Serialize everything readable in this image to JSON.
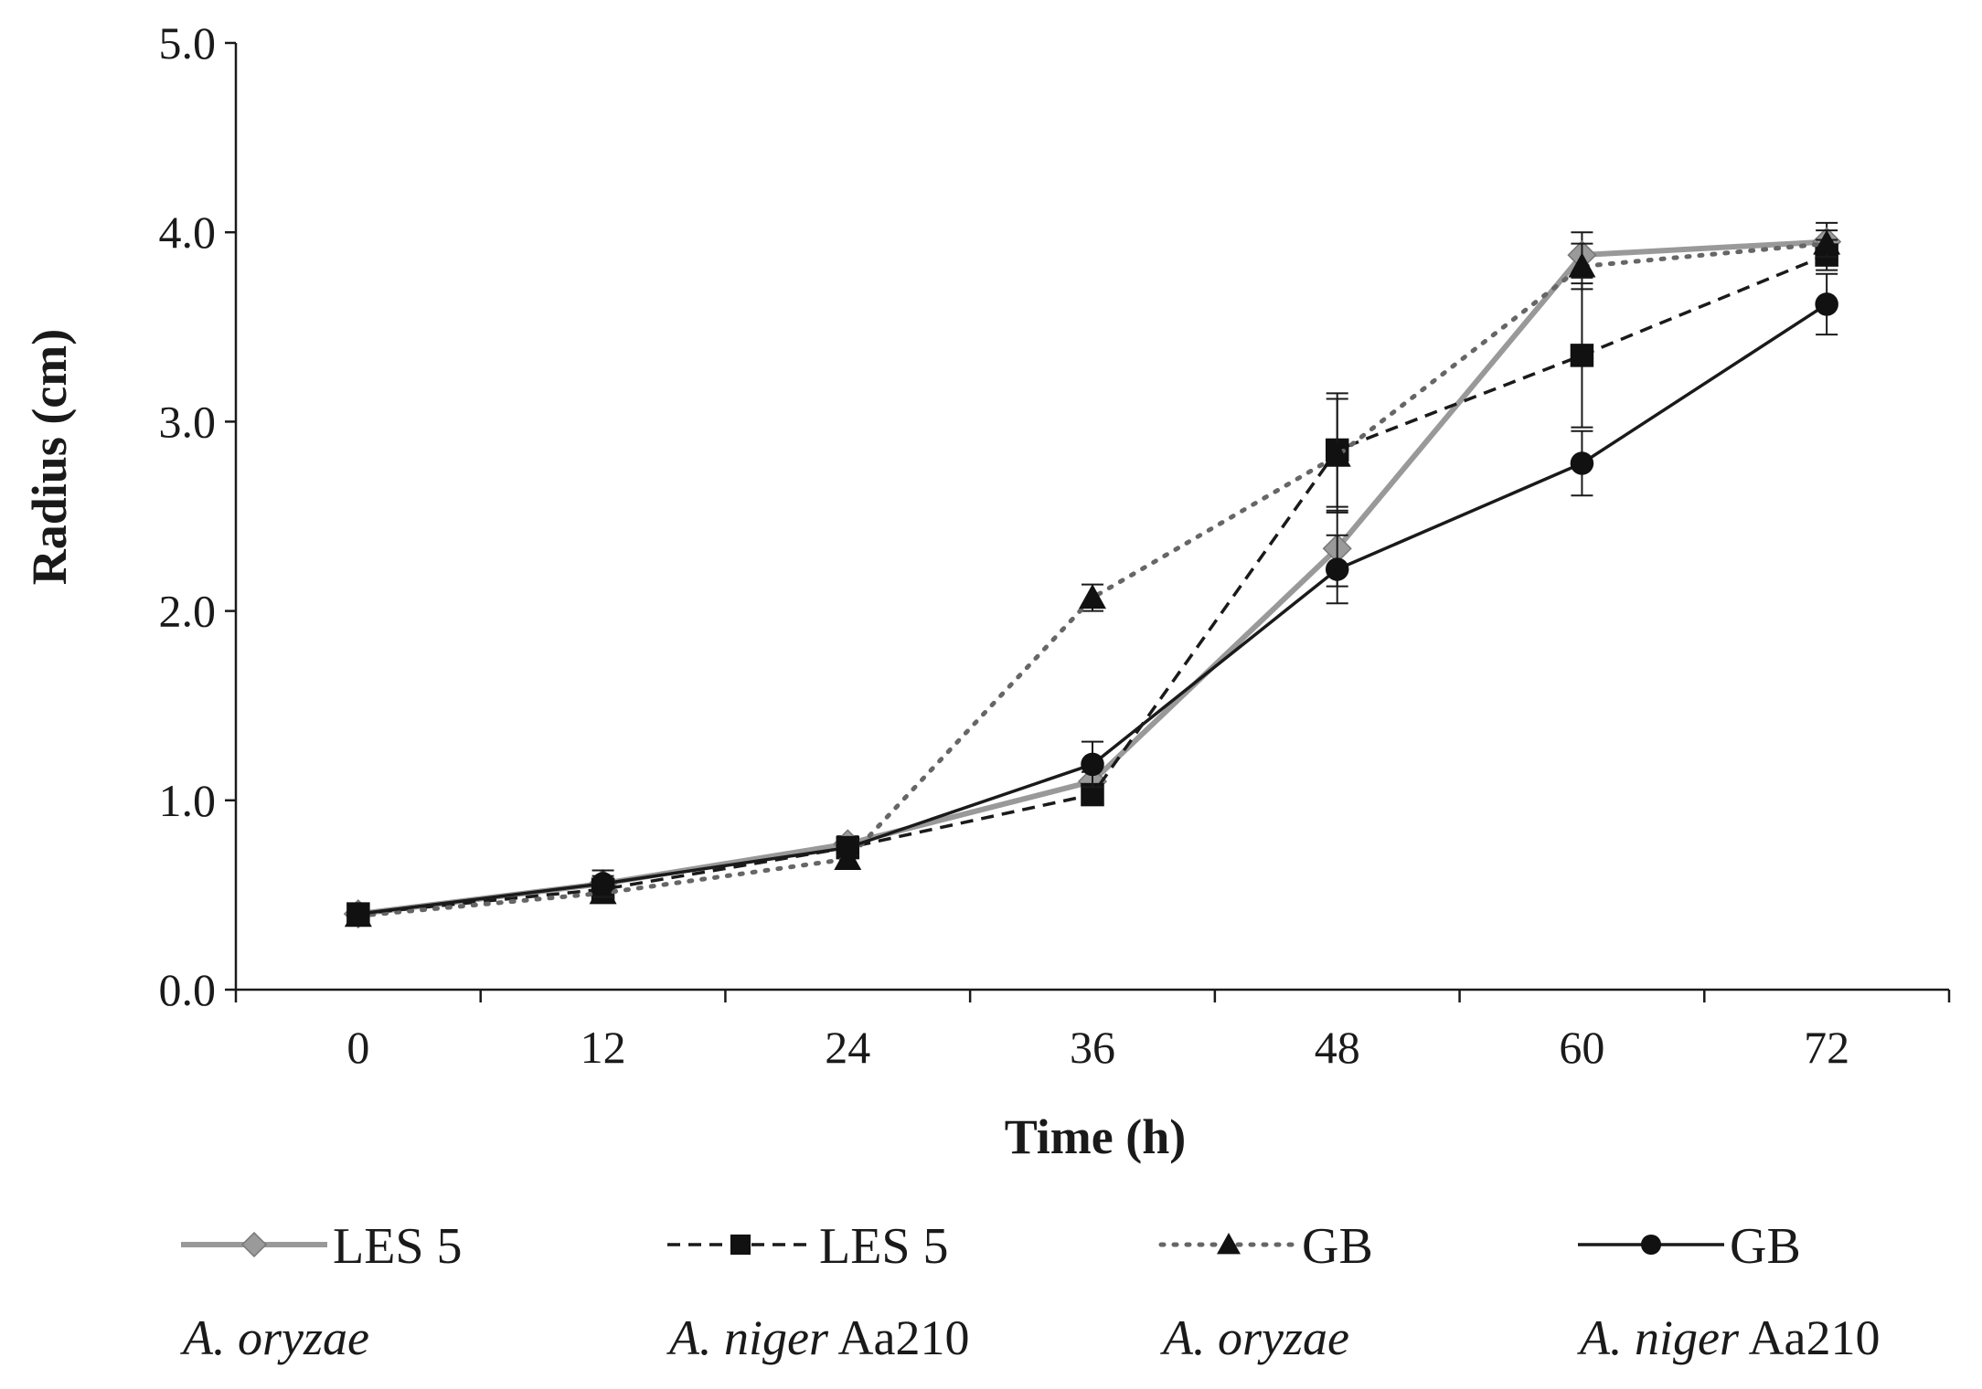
{
  "chart_data": {
    "type": "line",
    "title": "",
    "xlabel": "Time (h)",
    "ylabel": "Radius (cm)",
    "x": [
      0,
      12,
      24,
      36,
      48,
      60,
      72
    ],
    "ylim": [
      0,
      5
    ],
    "yticks": [
      "0.0",
      "1.0",
      "2.0",
      "3.0",
      "4.0",
      "5.0"
    ],
    "xticks": [
      "0",
      "12",
      "24",
      "36",
      "48",
      "60",
      "72"
    ],
    "legend_position": "bottom",
    "series": [
      {
        "name": "LES 5",
        "species": "A. oryzae",
        "species_suffix": "",
        "marker": "diamond",
        "line_style": "solid",
        "color": "#999999",
        "values": [
          0.4,
          0.56,
          0.77,
          1.1,
          2.33,
          3.88,
          3.95
        ],
        "errors": [
          0.03,
          0.04,
          0.04,
          0.05,
          0.2,
          0.12,
          0.1
        ]
      },
      {
        "name": "LES 5",
        "species": "A. niger",
        "species_suffix": " Aa210",
        "marker": "square",
        "line_style": "dashed",
        "color": "#1a1a1a",
        "values": [
          0.4,
          0.53,
          0.75,
          1.03,
          2.85,
          3.35,
          3.88
        ],
        "errors": [
          0.03,
          0.04,
          0.04,
          0.04,
          0.3,
          0.38,
          0.08
        ]
      },
      {
        "name": "GB",
        "species": "A. oryzae",
        "species_suffix": "",
        "marker": "triangle",
        "line_style": "dotted",
        "color": "#666666",
        "values": [
          0.39,
          0.51,
          0.69,
          2.07,
          2.82,
          3.82,
          3.94
        ],
        "errors": [
          0.03,
          0.04,
          0.04,
          0.07,
          0.3,
          0.12,
          0.07
        ]
      },
      {
        "name": "GB",
        "species": "A. niger",
        "species_suffix": " Aa210",
        "marker": "circle",
        "line_style": "solid",
        "color": "#1a1a1a",
        "values": [
          0.4,
          0.56,
          0.75,
          1.19,
          2.22,
          2.78,
          3.62
        ],
        "errors": [
          0.03,
          0.07,
          0.04,
          0.12,
          0.18,
          0.17,
          0.16
        ]
      }
    ]
  }
}
